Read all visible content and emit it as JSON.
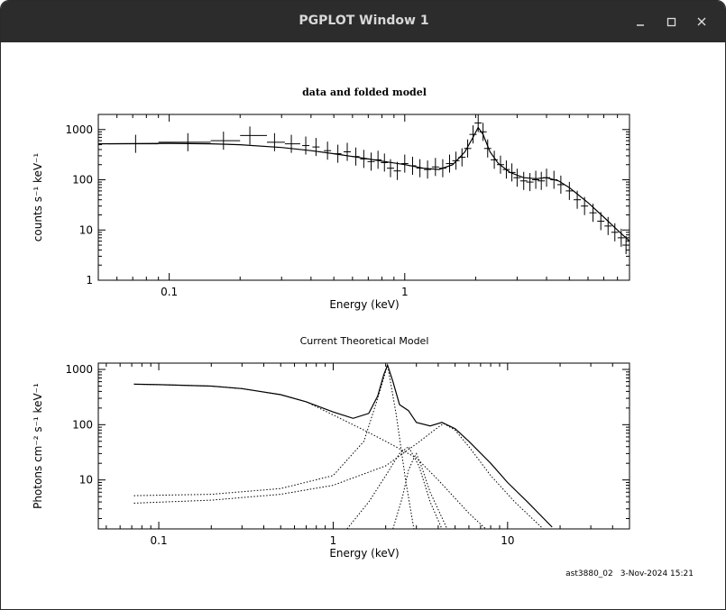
{
  "window": {
    "title": "PGPLOT Window 1",
    "minimize_icon": "minimize-icon",
    "maximize_icon": "maximize-icon",
    "close_icon": "close-icon"
  },
  "footer": {
    "id_text": "ast3880_02",
    "date_text": "3-Nov-2024 15:21"
  },
  "chart_data": [
    {
      "type": "scatter",
      "title": "data and folded model",
      "xlabel": "Energy (keV)",
      "ylabel": "counts s⁻¹ keV⁻¹",
      "xscale": "log",
      "yscale": "log",
      "xlim": [
        0.05,
        9.0
      ],
      "ylim": [
        1,
        2000
      ],
      "xticks": [
        "0.1",
        "1"
      ],
      "yticks": [
        "1",
        "10",
        "100",
        "1000"
      ],
      "grid": false,
      "data_points": [
        {
          "x": 0.072,
          "y": 520,
          "xerr": [
            0.055,
            0.09
          ]
        },
        {
          "x": 0.12,
          "y": 560,
          "xerr": [
            0.09,
            0.15
          ]
        },
        {
          "x": 0.17,
          "y": 600,
          "xerr": [
            0.15,
            0.2
          ]
        },
        {
          "x": 0.22,
          "y": 760,
          "xerr": [
            0.2,
            0.26
          ]
        },
        {
          "x": 0.28,
          "y": 560,
          "xerr": [
            0.26,
            0.31
          ]
        },
        {
          "x": 0.33,
          "y": 520,
          "xerr": [
            0.31,
            0.36
          ]
        },
        {
          "x": 0.38,
          "y": 480
        },
        {
          "x": 0.42,
          "y": 450
        },
        {
          "x": 0.47,
          "y": 380
        },
        {
          "x": 0.52,
          "y": 330
        },
        {
          "x": 0.57,
          "y": 360
        },
        {
          "x": 0.62,
          "y": 290
        },
        {
          "x": 0.67,
          "y": 260
        },
        {
          "x": 0.72,
          "y": 230
        },
        {
          "x": 0.77,
          "y": 250
        },
        {
          "x": 0.82,
          "y": 220
        },
        {
          "x": 0.87,
          "y": 170
        },
        {
          "x": 0.93,
          "y": 150
        },
        {
          "x": 1.0,
          "y": 210
        },
        {
          "x": 1.08,
          "y": 190
        },
        {
          "x": 1.16,
          "y": 170
        },
        {
          "x": 1.25,
          "y": 160
        },
        {
          "x": 1.35,
          "y": 180
        },
        {
          "x": 1.45,
          "y": 170
        },
        {
          "x": 1.55,
          "y": 210
        },
        {
          "x": 1.65,
          "y": 240
        },
        {
          "x": 1.75,
          "y": 280
        },
        {
          "x": 1.85,
          "y": 420
        },
        {
          "x": 1.95,
          "y": 800
        },
        {
          "x": 2.05,
          "y": 1350
        },
        {
          "x": 2.15,
          "y": 900
        },
        {
          "x": 2.25,
          "y": 420
        },
        {
          "x": 2.4,
          "y": 250
        },
        {
          "x": 2.55,
          "y": 200
        },
        {
          "x": 2.7,
          "y": 160
        },
        {
          "x": 2.85,
          "y": 140
        },
        {
          "x": 3.0,
          "y": 110
        },
        {
          "x": 3.2,
          "y": 95
        },
        {
          "x": 3.4,
          "y": 90
        },
        {
          "x": 3.6,
          "y": 100
        },
        {
          "x": 3.8,
          "y": 95
        },
        {
          "x": 4.0,
          "y": 110
        },
        {
          "x": 4.3,
          "y": 100
        },
        {
          "x": 4.6,
          "y": 80
        },
        {
          "x": 5.0,
          "y": 60
        },
        {
          "x": 5.4,
          "y": 40
        },
        {
          "x": 5.8,
          "y": 30
        },
        {
          "x": 6.3,
          "y": 22
        },
        {
          "x": 6.8,
          "y": 15
        },
        {
          "x": 7.3,
          "y": 12
        },
        {
          "x": 7.8,
          "y": 9
        },
        {
          "x": 8.3,
          "y": 7
        },
        {
          "x": 8.7,
          "y": 5
        }
      ],
      "model": [
        {
          "x": 0.05,
          "y": 520
        },
        {
          "x": 0.1,
          "y": 530
        },
        {
          "x": 0.15,
          "y": 520
        },
        {
          "x": 0.2,
          "y": 500
        },
        {
          "x": 0.3,
          "y": 440
        },
        {
          "x": 0.4,
          "y": 380
        },
        {
          "x": 0.5,
          "y": 330
        },
        {
          "x": 0.6,
          "y": 290
        },
        {
          "x": 0.7,
          "y": 260
        },
        {
          "x": 0.8,
          "y": 235
        },
        {
          "x": 1.0,
          "y": 200
        },
        {
          "x": 1.2,
          "y": 170
        },
        {
          "x": 1.4,
          "y": 160
        },
        {
          "x": 1.6,
          "y": 200
        },
        {
          "x": 1.8,
          "y": 360
        },
        {
          "x": 1.95,
          "y": 700
        },
        {
          "x": 2.05,
          "y": 1100
        },
        {
          "x": 2.15,
          "y": 800
        },
        {
          "x": 2.3,
          "y": 360
        },
        {
          "x": 2.5,
          "y": 210
        },
        {
          "x": 2.8,
          "y": 140
        },
        {
          "x": 3.2,
          "y": 110
        },
        {
          "x": 3.6,
          "y": 105
        },
        {
          "x": 4.0,
          "y": 110
        },
        {
          "x": 4.5,
          "y": 95
        },
        {
          "x": 5.0,
          "y": 70
        },
        {
          "x": 6.0,
          "y": 35
        },
        {
          "x": 7.0,
          "y": 18
        },
        {
          "x": 8.0,
          "y": 10
        },
        {
          "x": 9.0,
          "y": 6
        }
      ]
    },
    {
      "type": "line",
      "title": "Current Theoretical Model",
      "xlabel": "Energy (keV)",
      "ylabel": "Photons cm⁻² s⁻¹ keV⁻¹",
      "xscale": "log",
      "yscale": "log",
      "xlim": [
        0.045,
        50
      ],
      "ylim": [
        1.3,
        1300
      ],
      "xticks": [
        "0.1",
        "1",
        "10"
      ],
      "yticks": [
        "10",
        "100",
        "1000"
      ],
      "grid": false,
      "series": [
        {
          "style": "solid",
          "points": [
            {
              "x": 0.072,
              "y": 540
            },
            {
              "x": 0.1,
              "y": 530
            },
            {
              "x": 0.2,
              "y": 500
            },
            {
              "x": 0.3,
              "y": 450
            },
            {
              "x": 0.5,
              "y": 350
            },
            {
              "x": 0.7,
              "y": 260
            },
            {
              "x": 1.0,
              "y": 170
            },
            {
              "x": 1.3,
              "y": 130
            },
            {
              "x": 1.6,
              "y": 160
            },
            {
              "x": 1.8,
              "y": 330
            },
            {
              "x": 1.95,
              "y": 800
            },
            {
              "x": 2.05,
              "y": 1200
            },
            {
              "x": 2.2,
              "y": 600
            },
            {
              "x": 2.4,
              "y": 230
            },
            {
              "x": 2.7,
              "y": 180
            },
            {
              "x": 3.0,
              "y": 110
            },
            {
              "x": 3.6,
              "y": 95
            },
            {
              "x": 4.2,
              "y": 110
            },
            {
              "x": 5.0,
              "y": 85
            },
            {
              "x": 6.0,
              "y": 50
            },
            {
              "x": 8.0,
              "y": 20
            },
            {
              "x": 10.0,
              "y": 9
            },
            {
              "x": 13.0,
              "y": 4
            },
            {
              "x": 18.0,
              "y": 1.4
            }
          ]
        },
        {
          "style": "dotted",
          "points": [
            {
              "x": 0.072,
              "y": 540
            },
            {
              "x": 0.1,
              "y": 530
            },
            {
              "x": 0.2,
              "y": 500
            },
            {
              "x": 0.3,
              "y": 450
            },
            {
              "x": 0.5,
              "y": 350
            },
            {
              "x": 0.7,
              "y": 260
            },
            {
              "x": 1.0,
              "y": 150
            },
            {
              "x": 1.5,
              "y": 80
            },
            {
              "x": 2.0,
              "y": 50
            },
            {
              "x": 3.0,
              "y": 25
            },
            {
              "x": 4.0,
              "y": 10
            },
            {
              "x": 6.0,
              "y": 2.5
            },
            {
              "x": 7.5,
              "y": 1.3
            }
          ]
        },
        {
          "style": "dotted",
          "points": [
            {
              "x": 0.072,
              "y": 5.2
            },
            {
              "x": 0.2,
              "y": 5.5
            },
            {
              "x": 0.5,
              "y": 7
            },
            {
              "x": 1.0,
              "y": 12
            },
            {
              "x": 1.5,
              "y": 50
            },
            {
              "x": 1.8,
              "y": 300
            },
            {
              "x": 2.05,
              "y": 1200
            },
            {
              "x": 2.3,
              "y": 150
            },
            {
              "x": 2.6,
              "y": 10
            },
            {
              "x": 2.9,
              "y": 1.3
            }
          ]
        },
        {
          "style": "dotted",
          "points": [
            {
              "x": 0.072,
              "y": 3.8
            },
            {
              "x": 0.2,
              "y": 4.3
            },
            {
              "x": 0.5,
              "y": 5.5
            },
            {
              "x": 1.0,
              "y": 8
            },
            {
              "x": 2.0,
              "y": 18
            },
            {
              "x": 3.0,
              "y": 45
            },
            {
              "x": 4.0,
              "y": 90
            },
            {
              "x": 4.3,
              "y": 105
            },
            {
              "x": 5.0,
              "y": 80
            },
            {
              "x": 6.0,
              "y": 40
            },
            {
              "x": 8.0,
              "y": 12
            },
            {
              "x": 11.0,
              "y": 4
            },
            {
              "x": 16.0,
              "y": 1.3
            }
          ]
        },
        {
          "style": "dotted",
          "points": [
            {
              "x": 1.2,
              "y": 1.3
            },
            {
              "x": 1.6,
              "y": 4
            },
            {
              "x": 2.0,
              "y": 12
            },
            {
              "x": 2.4,
              "y": 30
            },
            {
              "x": 2.7,
              "y": 40
            },
            {
              "x": 3.1,
              "y": 18
            },
            {
              "x": 3.6,
              "y": 4
            },
            {
              "x": 4.2,
              "y": 1.3
            }
          ]
        },
        {
          "style": "dotted",
          "points": [
            {
              "x": 2.2,
              "y": 1.3
            },
            {
              "x": 2.5,
              "y": 5
            },
            {
              "x": 2.7,
              "y": 15
            },
            {
              "x": 2.9,
              "y": 25
            },
            {
              "x": 3.0,
              "y": 30
            },
            {
              "x": 3.2,
              "y": 18
            },
            {
              "x": 3.6,
              "y": 6
            },
            {
              "x": 4.5,
              "y": 1.3
            }
          ]
        }
      ]
    }
  ]
}
